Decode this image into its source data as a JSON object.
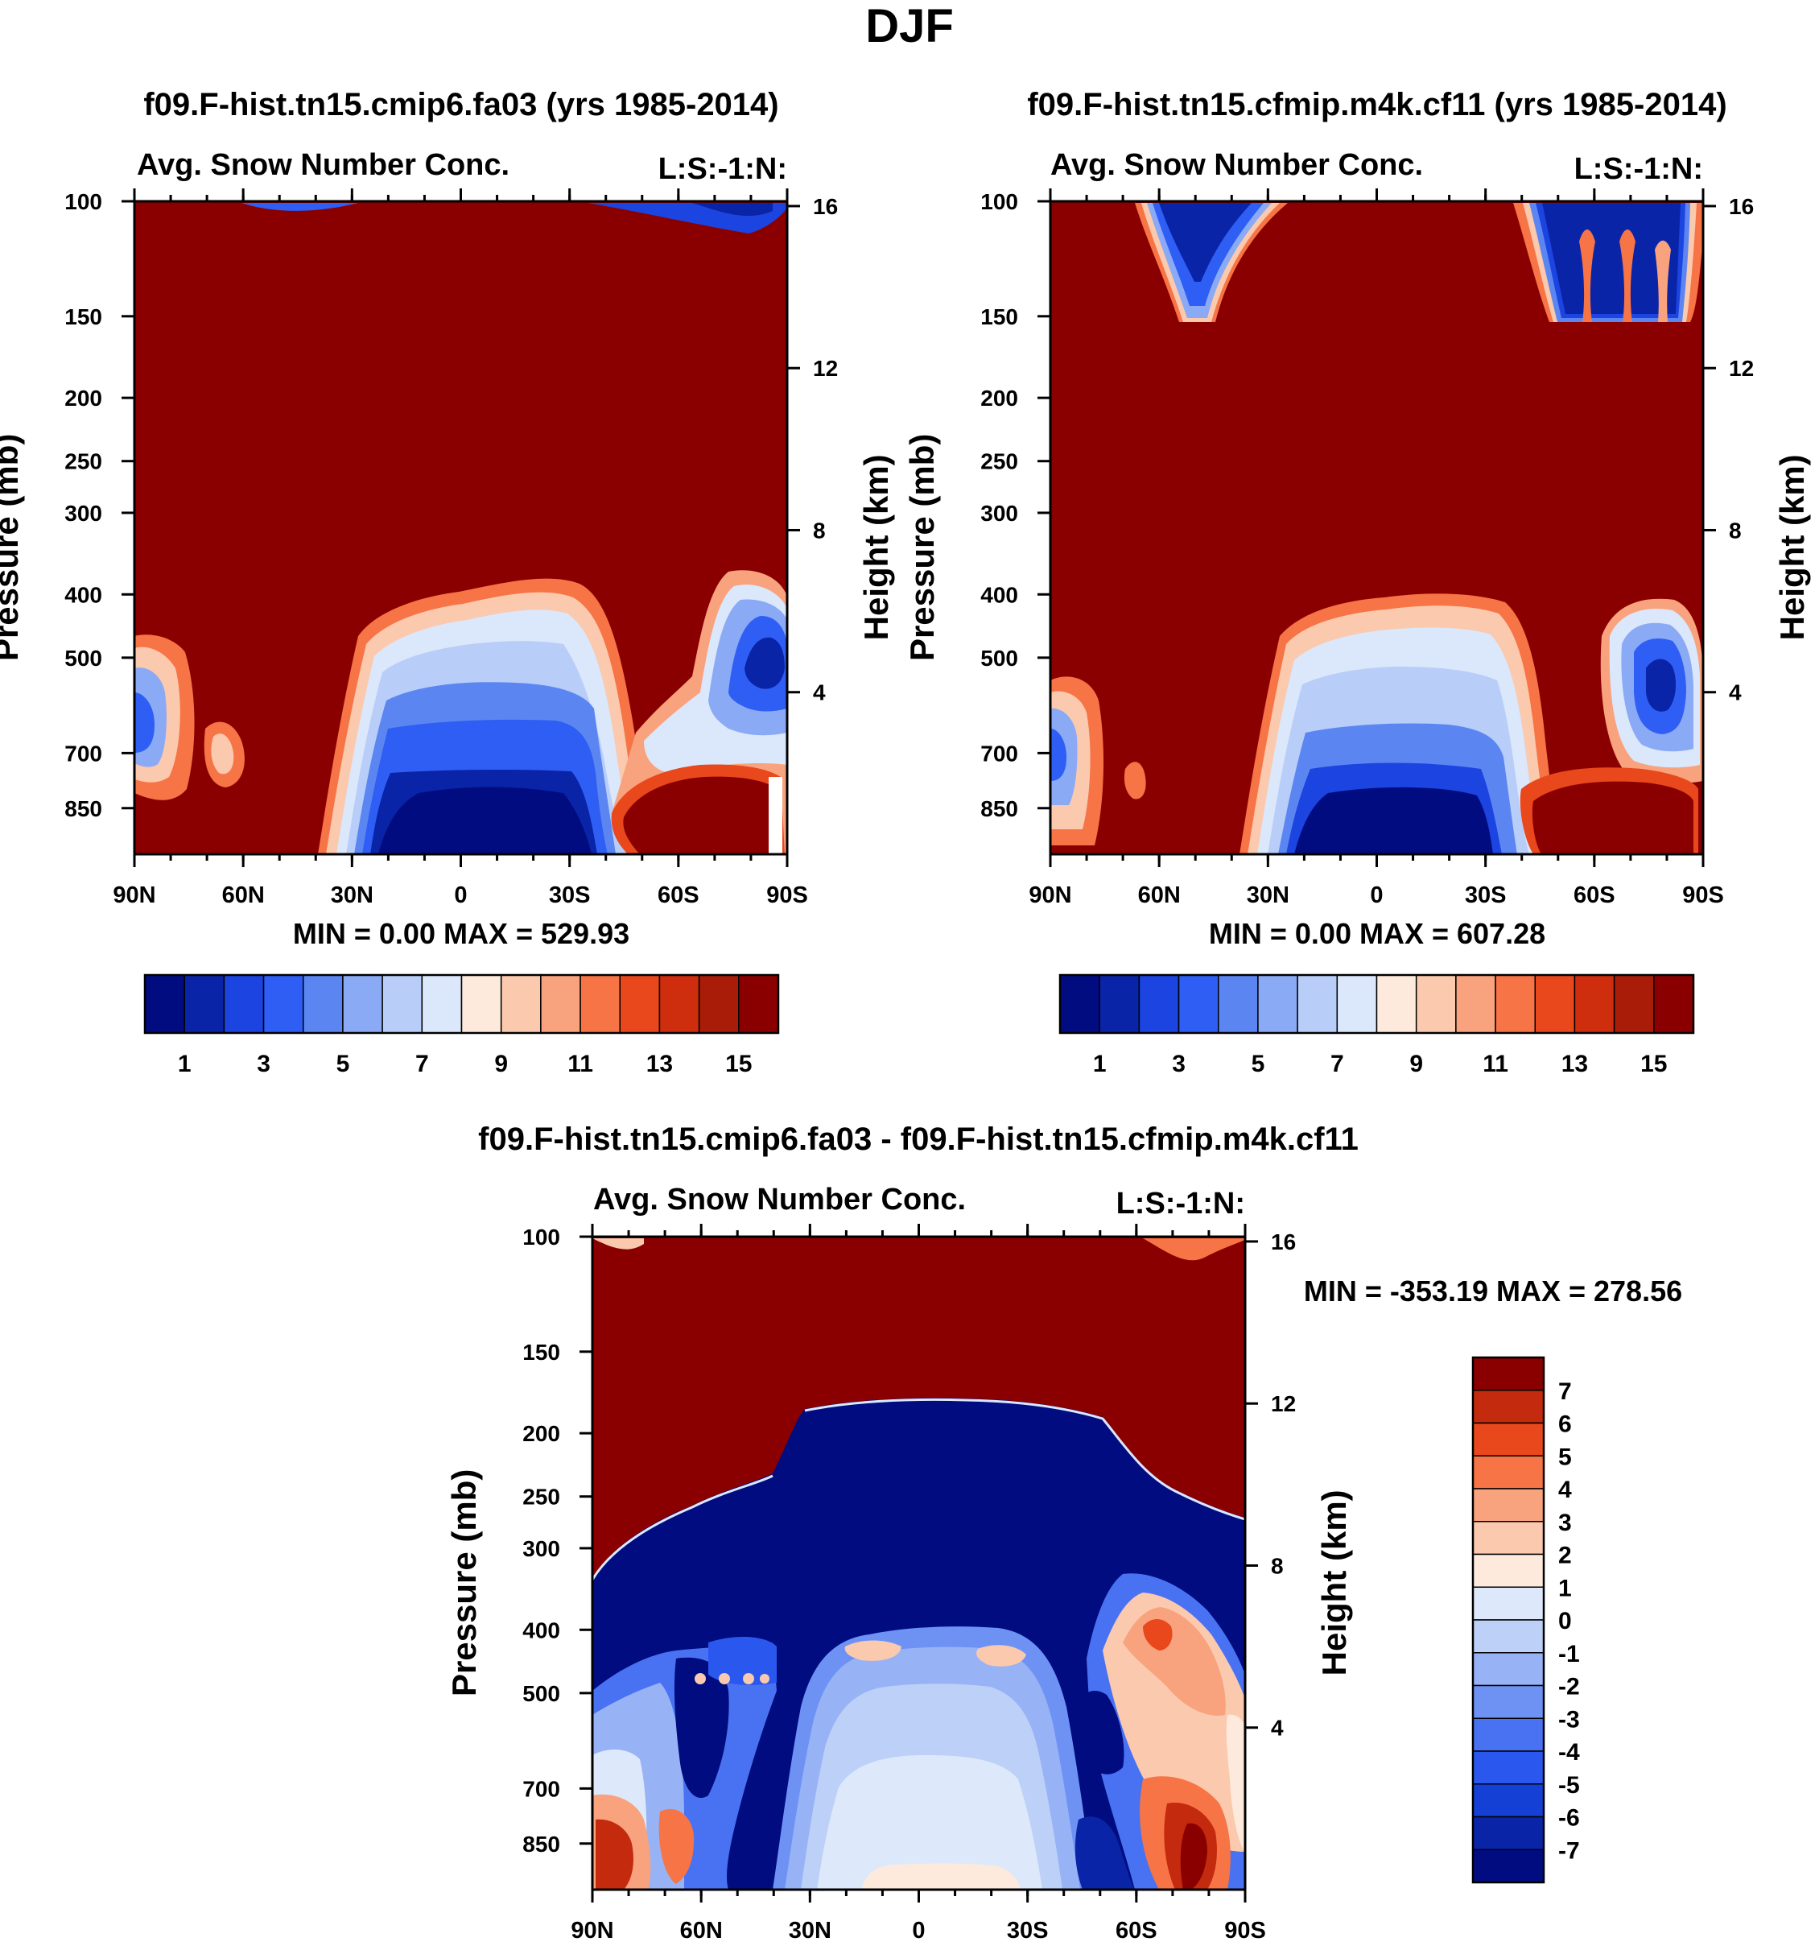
{
  "title": "DJF",
  "colors": {
    "dark_red": "#8a0000",
    "deep_blue": "#000c80",
    "seq_palette": [
      "#000c80",
      "#0a24a8",
      "#1c44e0",
      "#2f5ef5",
      "#5b86f2",
      "#8aaaf5",
      "#b8cdf8",
      "#dbe7fb",
      "#fdeadc",
      "#fbc9ad",
      "#f9a27e",
      "#f67445",
      "#e8481c",
      "#cf2e0e",
      "#a81c08",
      "#8a0000"
    ],
    "div_palette": [
      "#000c80",
      "#0a24a8",
      "#1540d6",
      "#2a58ef",
      "#4872f2",
      "#6e92f4",
      "#97b3f6",
      "#bdd0f8",
      "#dde9fb",
      "#fdeadc",
      "#fbc9ad",
      "#f9a27e",
      "#f67445",
      "#e8481c",
      "#c42a0e",
      "#8a0000"
    ]
  },
  "chart_data": [
    {
      "type": "heatmap",
      "case_title": "f09.F-hist.tn15.cmip6.fa03 (yrs 1985-2014)",
      "left_label": "Avg. Snow Number Conc.",
      "right_label": "L:S:-1:N:",
      "ylabel": "Pressure (mb)",
      "ylabel_right": "Height (km)",
      "x_ticks": [
        "90N",
        "60N",
        "30N",
        "0",
        "30S",
        "60S",
        "90S"
      ],
      "p_ticks": [
        "100",
        "150",
        "200",
        "250",
        "300",
        "400",
        "500",
        "700",
        "850"
      ],
      "z_ticks": [
        "16",
        "12",
        "8",
        "4"
      ],
      "ylim": [
        100,
        1000
      ],
      "min_max": "MIN =    0.00   MAX = 529.93",
      "colorbar_labels": [
        "1",
        "3",
        "5",
        "7",
        "9",
        "11",
        "13",
        "15"
      ]
    },
    {
      "type": "heatmap",
      "case_title": "f09.F-hist.tn15.cfmip.m4k.cf11 (yrs 1985-2014)",
      "left_label": "Avg. Snow Number Conc.",
      "right_label": "L:S:-1:N:",
      "ylabel": "Pressure (mb)",
      "ylabel_right": "Height (km)",
      "x_ticks": [
        "90N",
        "60N",
        "30N",
        "0",
        "30S",
        "60S",
        "90S"
      ],
      "p_ticks": [
        "100",
        "150",
        "200",
        "250",
        "300",
        "400",
        "500",
        "700",
        "850"
      ],
      "z_ticks": [
        "16",
        "12",
        "8",
        "4"
      ],
      "ylim": [
        100,
        1000
      ],
      "min_max": "MIN =    0.00   MAX = 607.28",
      "colorbar_labels": [
        "1",
        "3",
        "5",
        "7",
        "9",
        "11",
        "13",
        "15"
      ]
    },
    {
      "type": "heatmap",
      "case_title": "f09.F-hist.tn15.cmip6.fa03 - f09.F-hist.tn15.cfmip.m4k.cf11",
      "left_label": "Avg. Snow Number Conc.",
      "right_label": "L:S:-1:N:",
      "ylabel": "Pressure (mb)",
      "ylabel_right": "Height (km)",
      "x_ticks": [
        "90N",
        "60N",
        "30N",
        "0",
        "30S",
        "60S",
        "90S"
      ],
      "p_ticks": [
        "100",
        "150",
        "200",
        "250",
        "300",
        "400",
        "500",
        "700",
        "850"
      ],
      "z_ticks": [
        "16",
        "12",
        "8",
        "4"
      ],
      "ylim": [
        100,
        1000
      ],
      "min_max": "MIN = -353.19   MAX = 278.56",
      "colorbar_labels": [
        "7",
        "6",
        "5",
        "4",
        "3",
        "2",
        "1",
        "0",
        "-1",
        "-2",
        "-3",
        "-4",
        "-5",
        "-6",
        "-7"
      ]
    }
  ]
}
